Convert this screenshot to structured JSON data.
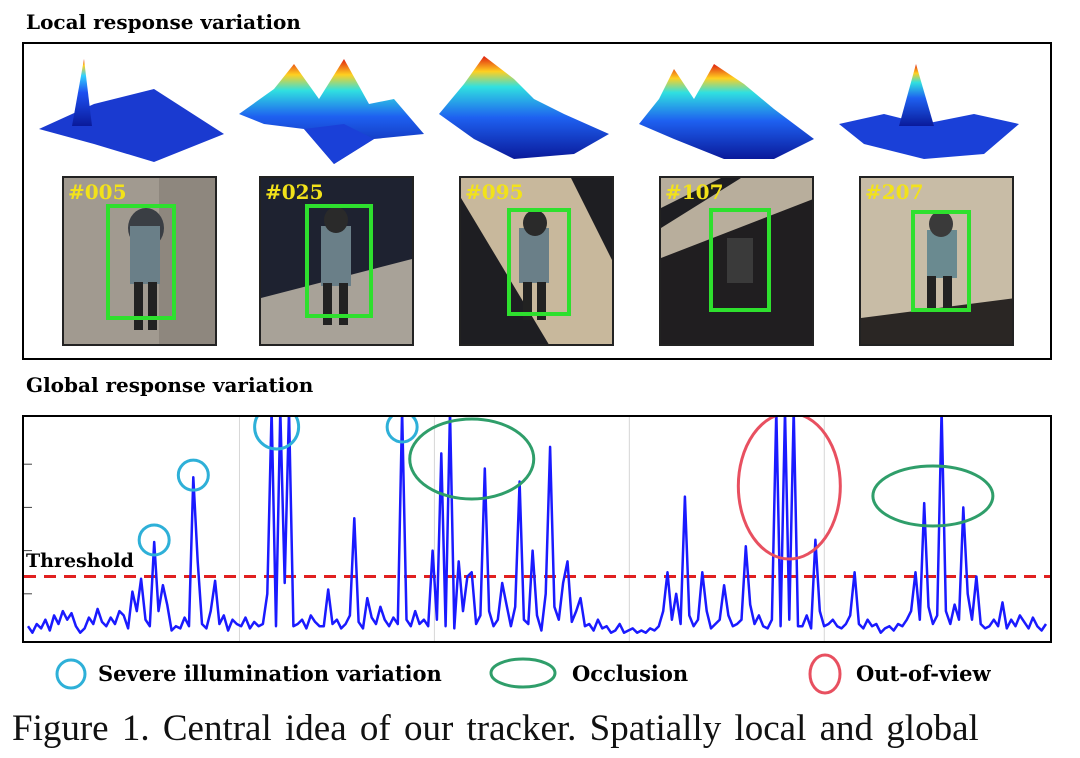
{
  "figure": {
    "local_heading": "Local response variation",
    "global_heading": "Global response variation",
    "frames": [
      "#005",
      "#025",
      "#095",
      "#107",
      "#207"
    ],
    "threshold_label": "Threshold",
    "legend": [
      {
        "label": "Severe illumination variation",
        "shape": "circle",
        "color": "#2eb0d8"
      },
      {
        "label": "Occlusion",
        "shape": "ellipse",
        "color": "#2f9e6a"
      },
      {
        "label": "Out-of-view",
        "shape": "ellipse",
        "color": "#e85060"
      }
    ],
    "caption": "Figure 1. Central idea of our tracker. Spatially local and global"
  },
  "colors": {
    "response_line": "#1a1aff",
    "threshold_line": "#e02020",
    "box": "#2ee02e",
    "illumination": "#2eb0d8",
    "occlusion": "#2f9e6a",
    "out_of_view": "#e85060"
  },
  "chart_data": {
    "type": "line",
    "series": [
      {
        "values": [
          0.05,
          0.02,
          0.06,
          0.04,
          0.08,
          0.03,
          0.1,
          0.06,
          0.12,
          0.08,
          0.11,
          0.05,
          0.02,
          0.04,
          0.09,
          0.06,
          0.13,
          0.07,
          0.05,
          0.09,
          0.06,
          0.12,
          0.1,
          0.04,
          0.21,
          0.12,
          0.27,
          0.08,
          0.05,
          0.44,
          0.12,
          0.24,
          0.15,
          0.03,
          0.05,
          0.04,
          0.09,
          0.05,
          0.74,
          0.35,
          0.06,
          0.04,
          0.12,
          0.26,
          0.06,
          0.1,
          0.03,
          0.08,
          0.06,
          0.05,
          0.09,
          0.04,
          0.07,
          0.05,
          0.06,
          0.2,
          1.05,
          0.05,
          1.05,
          0.25,
          1.05,
          0.05,
          0.06,
          0.08,
          0.04,
          0.1,
          0.07,
          0.05,
          0.05,
          0.22,
          0.06,
          0.08,
          0.04,
          0.06,
          0.1,
          0.55,
          0.07,
          0.04,
          0.18,
          0.09,
          0.06,
          0.14,
          0.08,
          0.05,
          0.09,
          0.06,
          1.05,
          0.08,
          0.05,
          0.12,
          0.06,
          0.08,
          0.05,
          0.4,
          0.08,
          0.85,
          0.05,
          1.05,
          0.04,
          0.35,
          0.12,
          0.28,
          0.3,
          0.06,
          0.1,
          0.78,
          0.12,
          0.05,
          0.08,
          0.25,
          0.15,
          0.05,
          0.14,
          0.72,
          0.08,
          0.06,
          0.4,
          0.1,
          0.03,
          0.2,
          0.88,
          0.14,
          0.08,
          0.25,
          0.35,
          0.07,
          0.12,
          0.18,
          0.05,
          0.06,
          0.03,
          0.08,
          0.04,
          0.05,
          0.02,
          0.03,
          0.06,
          0.02,
          0.03,
          0.04,
          0.02,
          0.03,
          0.02,
          0.04,
          0.03,
          0.05,
          0.12,
          0.3,
          0.08,
          0.2,
          0.06,
          0.65,
          0.1,
          0.05,
          0.08,
          0.3,
          0.12,
          0.04,
          0.06,
          0.08,
          0.24,
          0.1,
          0.05,
          0.06,
          0.08,
          0.42,
          0.15,
          0.06,
          0.1,
          0.05,
          0.04,
          0.08,
          1.05,
          0.05,
          1.05,
          0.08,
          1.05,
          0.05,
          0.05,
          0.1,
          0.04,
          0.45,
          0.12,
          0.05,
          0.06,
          0.08,
          0.05,
          0.04,
          0.06,
          0.1,
          0.3,
          0.06,
          0.04,
          0.08,
          0.05,
          0.06,
          0.02,
          0.04,
          0.05,
          0.03,
          0.06,
          0.05,
          0.08,
          0.12,
          0.3,
          0.08,
          0.62,
          0.14,
          0.06,
          0.1,
          1.05,
          0.12,
          0.06,
          0.15,
          0.08,
          0.6,
          0.2,
          0.08,
          0.28,
          0.06,
          0.04,
          0.05,
          0.08,
          0.05,
          0.16,
          0.04,
          0.08,
          0.05,
          0.1,
          0.07,
          0.04,
          0.09,
          0.05,
          0.03,
          0.06
        ],
        "color": "#1a1aff"
      }
    ],
    "threshold": 0.28,
    "ylim": [
      0,
      1
    ],
    "grid": true,
    "annotations": [
      {
        "kind": "illumination",
        "index": 29
      },
      {
        "kind": "illumination",
        "index": 38
      },
      {
        "kind": "illumination",
        "index": 56
      },
      {
        "kind": "illumination",
        "index": 86
      },
      {
        "kind": "occlusion",
        "index": 102
      },
      {
        "kind": "out_of_view",
        "index": 175
      },
      {
        "kind": "occlusion",
        "index": 208
      }
    ]
  }
}
